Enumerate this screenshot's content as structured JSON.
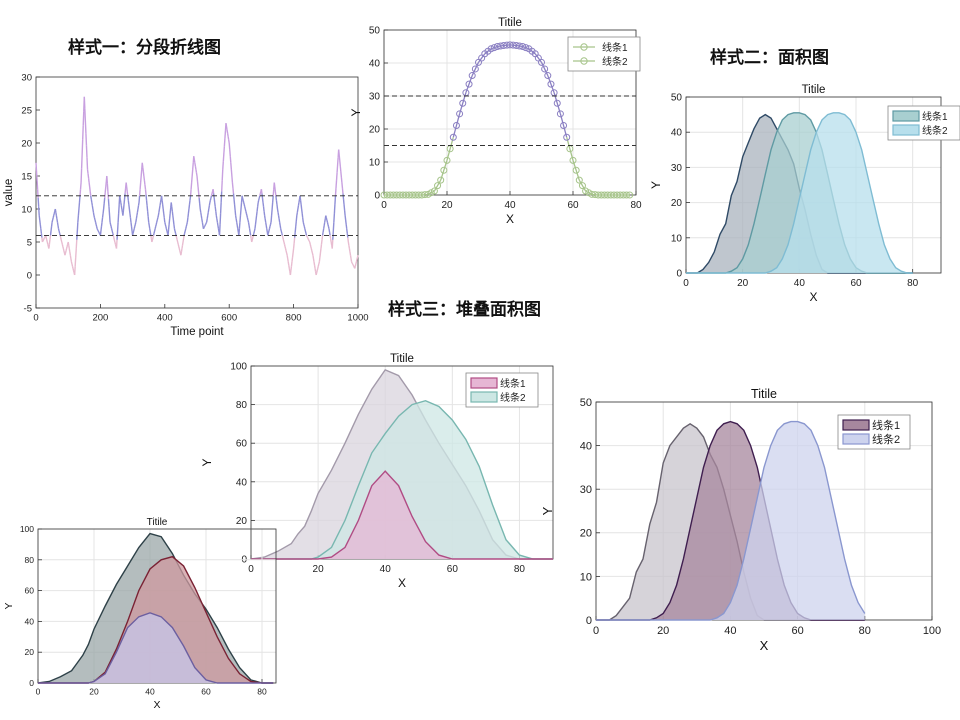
{
  "headers": {
    "style1": "样式一：分段折线图",
    "style2": "样式二：面积图",
    "style3": "样式三：堆叠面积图"
  },
  "chart_data": [
    {
      "id": "segmented_line",
      "type": "line",
      "title": "",
      "xlabel": "Time point",
      "ylabel": "value",
      "xlim": [
        0,
        1000
      ],
      "ylim": [
        -5,
        30
      ],
      "xticks": [
        0,
        200,
        400,
        600,
        800,
        1000
      ],
      "yticks": [
        -5,
        0,
        5,
        10,
        15,
        20,
        25,
        30
      ],
      "thresholds": [
        6,
        12
      ],
      "x": [
        0,
        10,
        20,
        30,
        40,
        50,
        60,
        70,
        80,
        90,
        100,
        110,
        120,
        130,
        140,
        150,
        160,
        170,
        180,
        190,
        200,
        210,
        220,
        230,
        240,
        250,
        260,
        270,
        280,
        290,
        300,
        310,
        320,
        330,
        340,
        350,
        360,
        370,
        380,
        390,
        400,
        410,
        420,
        430,
        440,
        450,
        460,
        470,
        480,
        490,
        500,
        510,
        520,
        530,
        540,
        550,
        560,
        570,
        580,
        590,
        600,
        610,
        620,
        630,
        640,
        650,
        660,
        670,
        680,
        690,
        700,
        710,
        720,
        730,
        740,
        750,
        760,
        770,
        780,
        790,
        800,
        810,
        820,
        830,
        840,
        850,
        860,
        870,
        880,
        890,
        900,
        910,
        920,
        930,
        940,
        950,
        960,
        970,
        980,
        990,
        1000
      ],
      "values": [
        17,
        9,
        5,
        6,
        4,
        8,
        10,
        7,
        5,
        3,
        5,
        2,
        0,
        8,
        14,
        27,
        16,
        12,
        9,
        7,
        6,
        10,
        15,
        8,
        6,
        4,
        12,
        9,
        14,
        10,
        6,
        8,
        11,
        17,
        13,
        8,
        5,
        7,
        9,
        12,
        8,
        6,
        11,
        7,
        5,
        3,
        6,
        8,
        12,
        18,
        15,
        10,
        7,
        8,
        11,
        13,
        9,
        6,
        16,
        23,
        20,
        14,
        9,
        6,
        12,
        10,
        8,
        5,
        7,
        11,
        13,
        9,
        6,
        8,
        14,
        10,
        7,
        5,
        3,
        0,
        4,
        9,
        12,
        8,
        6,
        5,
        3,
        0,
        2,
        6,
        9,
        7,
        4,
        12,
        19,
        14,
        9,
        5,
        2,
        1,
        3
      ],
      "colors": {
        "mid": "#8f8fd6",
        "high": "#c8a0e0",
        "low": "#e8bcd0"
      }
    },
    {
      "id": "gaussian_threshold",
      "type": "line",
      "title": "Titile",
      "xlabel": "X",
      "ylabel": "Y",
      "xlim": [
        0,
        80
      ],
      "ylim": [
        0,
        50
      ],
      "xticks": [
        0,
        20,
        40,
        60,
        80
      ],
      "yticks": [
        0,
        10,
        20,
        30,
        40,
        50
      ],
      "thresholds": [
        15,
        30
      ],
      "series": [
        {
          "name": "线条1",
          "x": [
            0,
            2,
            4,
            6,
            8,
            10,
            12,
            14,
            16,
            18,
            20,
            22,
            24,
            26,
            28,
            30,
            32,
            34,
            36,
            38,
            40,
            42,
            44,
            46,
            48,
            50,
            52,
            54,
            56,
            58,
            60,
            62,
            64,
            66,
            68,
            70,
            72,
            74,
            76,
            78
          ],
          "values": [
            0,
            0,
            0,
            0,
            0,
            0,
            0,
            0.2,
            1.2,
            4.5,
            10.5,
            17.5,
            24.6,
            31,
            36.2,
            40.2,
            42.8,
            44.3,
            45,
            45.3,
            45.5,
            45.3,
            45,
            44.3,
            42.8,
            40.2,
            36.2,
            31,
            24.6,
            17.5,
            10.5,
            4.5,
            1.2,
            0.2,
            0,
            0,
            0,
            0,
            0,
            0
          ]
        },
        {
          "name": "线条2",
          "x": [],
          "values": []
        }
      ],
      "colors": {
        "line1": "#9b8fcf",
        "line2": "#a6c48a",
        "low": "#a6c48a",
        "high": "#8a7fc2"
      }
    },
    {
      "id": "area_three",
      "type": "area",
      "title": "Titile",
      "xlabel": "X",
      "ylabel": "Y",
      "xlim": [
        0,
        90
      ],
      "ylim": [
        0,
        50
      ],
      "xticks": [
        0,
        20,
        40,
        60,
        80
      ],
      "yticks": [
        0,
        10,
        20,
        30,
        40,
        50
      ],
      "x": [
        0,
        2,
        4,
        6,
        8,
        10,
        12,
        14,
        16,
        18,
        20,
        22,
        24,
        26,
        28,
        30,
        32,
        34,
        36,
        38,
        40,
        42,
        44,
        46,
        48,
        50,
        52,
        54,
        56,
        58,
        60,
        62,
        64,
        66,
        68,
        70,
        72,
        74,
        76,
        78,
        80
      ],
      "series": [
        {
          "name": "",
          "values": [
            0,
            0,
            0,
            1,
            3,
            6,
            11,
            14,
            22,
            26,
            33,
            37,
            41,
            44,
            45,
            44,
            41,
            38,
            35,
            31,
            24,
            18,
            11,
            5,
            1,
            0,
            0,
            0,
            0,
            0,
            0,
            0,
            0,
            0,
            0,
            0,
            0,
            0,
            0,
            0,
            0
          ]
        },
        {
          "name": "线条1",
          "values": [
            0,
            0,
            0,
            0,
            0,
            0,
            0,
            0,
            0.5,
            1.5,
            4,
            8,
            14,
            21,
            28,
            35,
            40,
            43.5,
            45,
            45.5,
            45.5,
            45,
            43.5,
            40,
            35,
            28,
            21,
            14,
            8,
            4,
            1.5,
            0.5,
            0,
            0,
            0,
            0,
            0,
            0,
            0,
            0,
            0
          ]
        },
        {
          "name": "线条2",
          "values": [
            0,
            0,
            0,
            0,
            0,
            0,
            0,
            0,
            0,
            0,
            0,
            0,
            0,
            0,
            0,
            0.5,
            1.5,
            4,
            8,
            14,
            21,
            28,
            35,
            40,
            43.5,
            45,
            45.5,
            45.5,
            45,
            43.5,
            40,
            35,
            28,
            21,
            14,
            8,
            4,
            1.5,
            0.5,
            0,
            0
          ]
        }
      ],
      "colors": [
        "#2f4a66",
        "#5f9aa3",
        "#7fbcd3"
      ],
      "fills": [
        "#a9b3bd",
        "#a8cfd0",
        "#b7dfec"
      ]
    },
    {
      "id": "stacked_big",
      "type": "area",
      "title": "Titile",
      "xlabel": "X",
      "ylabel": "Y",
      "xlim": [
        0,
        90
      ],
      "ylim": [
        0,
        100
      ],
      "xticks": [
        0,
        20,
        40,
        60,
        80
      ],
      "yticks": [
        0,
        20,
        40,
        60,
        80,
        100
      ],
      "x": [
        0,
        4,
        8,
        12,
        14,
        16,
        18,
        20,
        24,
        28,
        32,
        36,
        40,
        44,
        48,
        52,
        56,
        60,
        64,
        68,
        72,
        76,
        80,
        84,
        88,
        90
      ],
      "series": [
        {
          "name": "线条1",
          "values": [
            0,
            0,
            0,
            0,
            0,
            0,
            0,
            0,
            1,
            6,
            20,
            38,
            45.5,
            38,
            22,
            9,
            2,
            0,
            0,
            0,
            0,
            0,
            0,
            0,
            0,
            0
          ]
        },
        {
          "name": "线条2",
          "values": [
            0,
            0,
            0,
            0,
            0,
            0,
            0,
            1,
            6,
            20,
            38,
            55,
            65,
            74,
            80,
            82,
            79,
            72,
            62,
            48,
            28,
            10,
            2,
            0,
            0,
            0
          ]
        },
        {
          "name": "",
          "values": [
            0,
            1,
            4,
            8,
            13,
            17,
            25,
            34,
            46,
            60,
            75,
            88,
            98,
            95,
            85,
            72,
            60,
            49,
            38,
            25,
            10,
            2,
            0,
            0,
            0,
            0
          ]
        }
      ],
      "colors": [
        "#b04c84",
        "#78b7b0",
        "#a39aaa"
      ],
      "fills": [
        "#e6b6d4",
        "#cde7e4",
        "#d9d4dd"
      ]
    },
    {
      "id": "overlap_big",
      "type": "area",
      "title": "Titile",
      "xlabel": "X",
      "ylabel": "Y",
      "xlim": [
        0,
        100
      ],
      "ylim": [
        0,
        50
      ],
      "xticks": [
        0,
        20,
        40,
        60,
        80,
        100
      ],
      "yticks": [
        0,
        10,
        20,
        30,
        40,
        50
      ],
      "x": [
        0,
        2,
        4,
        6,
        8,
        10,
        12,
        14,
        16,
        18,
        20,
        22,
        24,
        26,
        28,
        30,
        32,
        34,
        36,
        38,
        40,
        42,
        44,
        46,
        48,
        50,
        52,
        54,
        56,
        58,
        60,
        62,
        64,
        66,
        68,
        70,
        72,
        74,
        76,
        78,
        80
      ],
      "series": [
        {
          "name": "",
          "values": [
            0,
            0,
            0,
            1,
            3,
            5,
            11,
            14,
            22,
            27,
            36,
            40,
            42,
            44,
            45,
            44,
            42,
            38,
            35,
            30,
            24,
            18,
            11,
            5,
            1,
            0,
            0,
            0,
            0,
            0,
            0,
            0,
            0,
            0,
            0,
            0,
            0,
            0,
            0,
            0,
            0
          ]
        },
        {
          "name": "线条1",
          "values": [
            0,
            0,
            0,
            0,
            0,
            0,
            0,
            0,
            0,
            0.5,
            1.5,
            4,
            8,
            14,
            21,
            28,
            35,
            40,
            43.5,
            45,
            45.5,
            45,
            43.5,
            40,
            35,
            28,
            21,
            14,
            8,
            4,
            1.5,
            0.5,
            0,
            0,
            0,
            0,
            0,
            0,
            0,
            0,
            0
          ]
        },
        {
          "name": "线条2",
          "values": [
            0,
            0,
            0,
            0,
            0,
            0,
            0,
            0,
            0,
            0,
            0,
            0,
            0,
            0,
            0,
            0,
            0,
            0,
            0.5,
            1.5,
            4,
            8,
            14,
            21,
            28,
            35,
            40,
            43.5,
            45,
            45.5,
            45.5,
            45,
            43.5,
            40,
            35,
            28,
            21,
            14,
            8,
            4,
            1.5
          ]
        }
      ],
      "colors": [
        "#67626e",
        "#3f1e4f",
        "#8a97cf"
      ],
      "fills": [
        "#c8c4cc",
        "#a7879e",
        "#cdd3ee"
      ]
    },
    {
      "id": "stacked_small",
      "type": "area",
      "title": "Titile",
      "xlabel": "X",
      "ylabel": "Y",
      "xlim": [
        0,
        85
      ],
      "ylim": [
        0,
        100
      ],
      "xticks": [
        0,
        20,
        40,
        60,
        80
      ],
      "yticks": [
        0,
        20,
        40,
        60,
        80,
        100
      ],
      "x": [
        0,
        4,
        8,
        12,
        14,
        16,
        18,
        20,
        24,
        28,
        32,
        36,
        40,
        44,
        48,
        52,
        56,
        60,
        64,
        68,
        72,
        76,
        80,
        84
      ],
      "series": [
        {
          "name": "",
          "values": [
            0,
            0,
            0,
            0,
            0,
            0,
            0,
            1,
            6,
            20,
            36,
            43,
            45.5,
            43,
            36,
            24,
            10,
            2,
            0,
            0,
            0,
            0,
            0,
            0
          ]
        },
        {
          "name": "",
          "values": [
            0,
            0,
            0,
            0,
            0,
            0,
            0,
            1,
            7,
            22,
            40,
            60,
            74,
            80,
            82,
            76,
            62,
            46,
            30,
            16,
            6,
            1,
            0,
            0
          ]
        },
        {
          "name": "",
          "values": [
            0,
            1,
            4,
            8,
            13,
            18,
            25,
            35,
            50,
            64,
            76,
            88,
            97,
            95,
            84,
            70,
            58,
            48,
            36,
            22,
            10,
            2,
            0,
            0
          ]
        }
      ],
      "colors": [
        "#6c5fa0",
        "#7a2234",
        "#2e4148"
      ],
      "fills": [
        "#c7c6ea",
        "#cf9a9f",
        "#9ba7a8"
      ]
    }
  ]
}
